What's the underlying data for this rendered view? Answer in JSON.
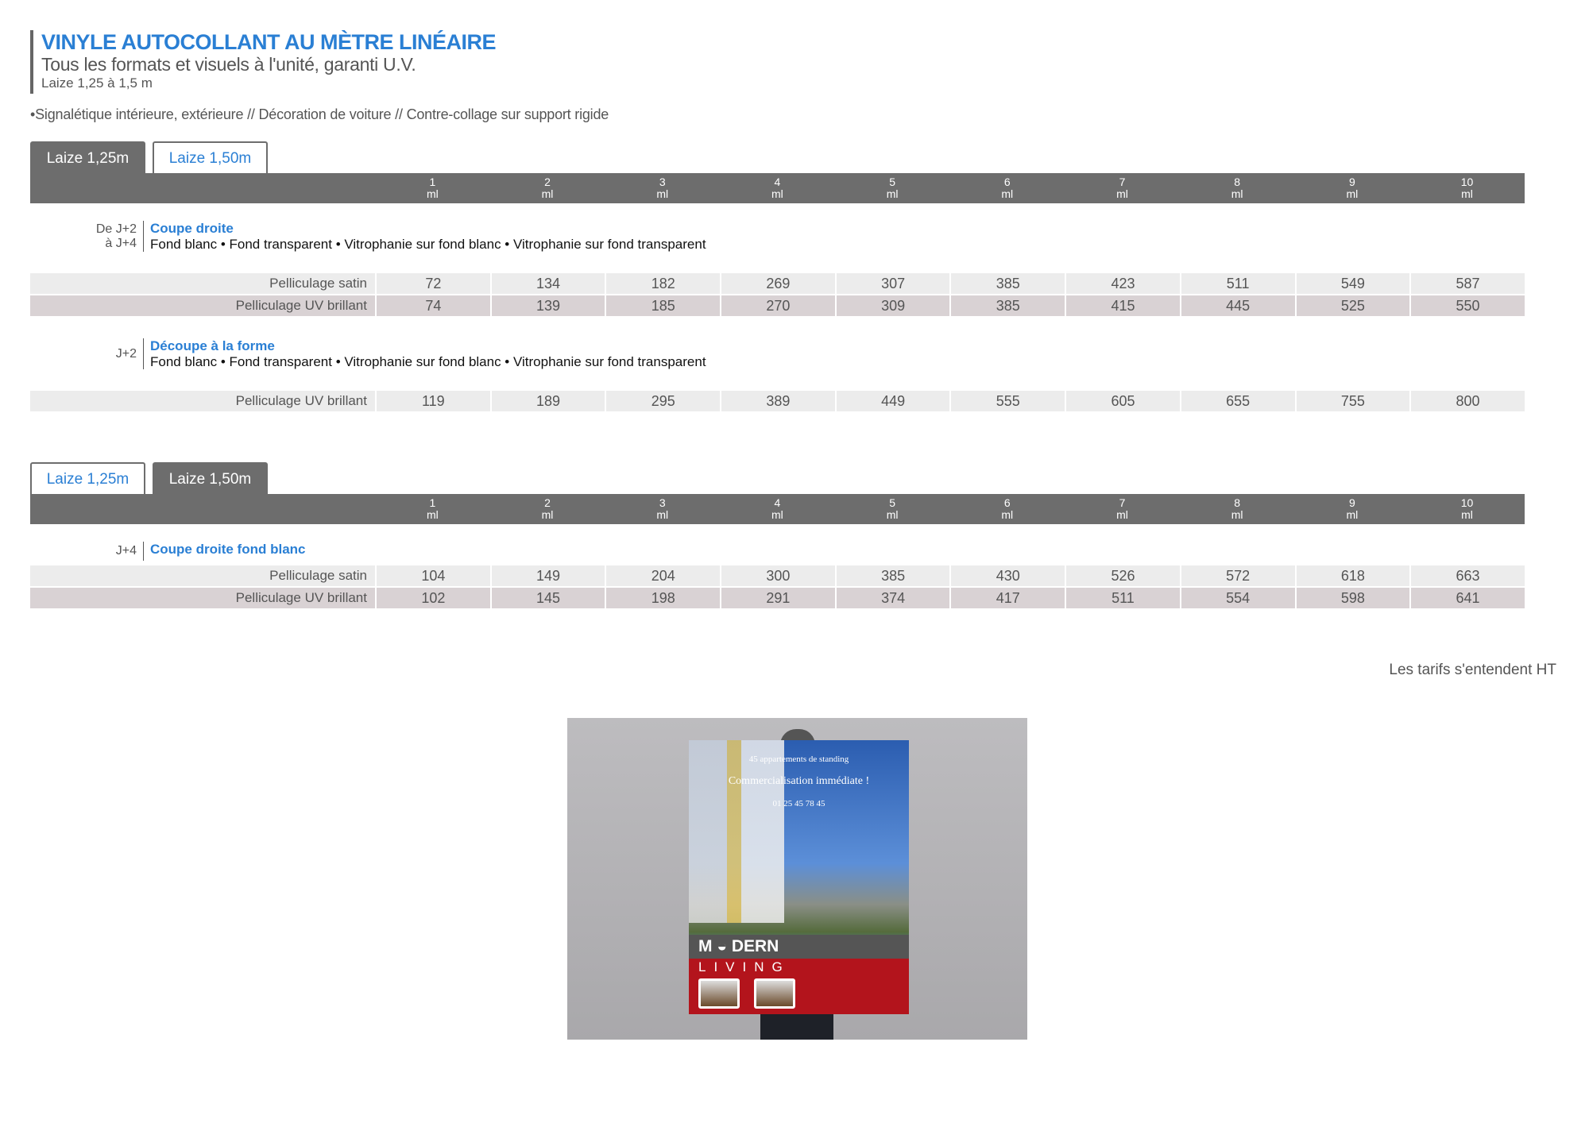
{
  "header": {
    "title": "VINYLE AUTOCOLLANT AU MÈTRE LINÉAIRE",
    "subtitle": "Tous les formats et visuels à l'unité, garanti U.V.",
    "laize": "Laize 1,25 à 1,5 m"
  },
  "uses": "•Signalétique intérieure, extérieure // Décoration de voiture // Contre-collage sur support rigide",
  "columns": [
    "1",
    "2",
    "3",
    "4",
    "5",
    "6",
    "7",
    "8",
    "9",
    "10"
  ],
  "unit": "ml",
  "table1": {
    "tabs": [
      {
        "label": "Laize 1,25m",
        "active": true
      },
      {
        "label": "Laize 1,50m",
        "active": false
      }
    ],
    "sections": [
      {
        "delay": [
          "De J+2",
          "à J+4"
        ],
        "title": "Coupe droite",
        "desc": "Fond blanc  •  Fond transparent  •  Vitrophanie sur fond blanc  •  Vitrophanie sur fond transparent",
        "rows": [
          {
            "label": "Pelliculage satin",
            "values": [
              72,
              134,
              182,
              269,
              307,
              385,
              423,
              511,
              549,
              587
            ]
          },
          {
            "label": "Pelliculage UV brillant",
            "values": [
              74,
              139,
              185,
              270,
              309,
              385,
              415,
              445,
              525,
              550
            ]
          }
        ]
      },
      {
        "delay": [
          "J+2"
        ],
        "title": "Découpe à la forme",
        "desc": "Fond blanc  •  Fond transparent  •  Vitrophanie sur fond blanc  •  Vitrophanie sur fond transparent",
        "rows": [
          {
            "label": "Pelliculage UV brillant",
            "values": [
              119,
              189,
              295,
              389,
              449,
              555,
              605,
              655,
              755,
              800
            ]
          }
        ]
      }
    ]
  },
  "table2": {
    "tabs": [
      {
        "label": "Laize 1,25m",
        "active": false
      },
      {
        "label": "Laize 1,50m",
        "active": true
      }
    ],
    "sections": [
      {
        "delay": [
          "J+4"
        ],
        "title": "Coupe droite fond blanc",
        "desc": "",
        "rows": [
          {
            "label": "Pelliculage satin",
            "values": [
              104,
              149,
              204,
              300,
              385,
              430,
              526,
              572,
              618,
              663
            ]
          },
          {
            "label": "Pelliculage UV brillant",
            "values": [
              102,
              145,
              198,
              291,
              374,
              417,
              511,
              554,
              598,
              641
            ]
          }
        ]
      }
    ]
  },
  "note": "Les tarifs s'entendent HT",
  "poster": {
    "line1": "45 appartements de standing",
    "line2": "Commercialisation immédiate !",
    "phone": "01 25 45 78 45",
    "brand1": "M ◒ DERN",
    "brand2": "LIVING"
  },
  "colors": {
    "accent": "#2a7fd4",
    "header_bg": "#6d6d6d",
    "row_light": "#ececec",
    "row_dark": "#d9d2d4"
  }
}
